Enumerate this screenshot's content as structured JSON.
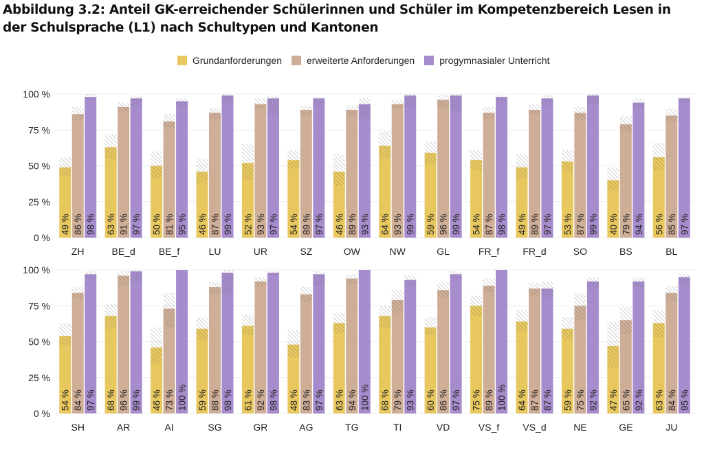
{
  "title": "Abbildung 3.2: Anteil GK-erreichender Schülerinnen und Schüler im Kompetenzbereich Lesen in der Schulsprache (L1) nach Schultypen und Kantonen",
  "chart_data": {
    "type": "bar",
    "title": "Abbildung 3.2: Anteil GK-erreichender Schülerinnen und Schüler im Kompetenzbereich Lesen in der Schulsprache (L1) nach Schultypen und Kantonen",
    "ylim": [
      0,
      100
    ],
    "yticks": [
      "0 %",
      "25 %",
      "50 %",
      "75 %",
      "100 %"
    ],
    "grid": true,
    "legend_placement": "top",
    "series": [
      {
        "name": "Grundanforderungen",
        "color": "#e8c85e"
      },
      {
        "name": "erweiterte Anforderungen",
        "color": "#cfae98"
      },
      {
        "name": "progymnasialer Unterricht",
        "color": "#a68ccc"
      }
    ],
    "panels": [
      {
        "categories": [
          "ZH",
          "BE_d",
          "BE_f",
          "LU",
          "UR",
          "SZ",
          "OW",
          "NW",
          "GL",
          "FR_f",
          "FR_d",
          "SO",
          "BS",
          "BL"
        ],
        "values": [
          [
            49,
            86,
            98
          ],
          [
            63,
            91,
            97
          ],
          [
            50,
            81,
            95
          ],
          [
            46,
            87,
            99
          ],
          [
            52,
            93,
            97
          ],
          [
            54,
            89,
            97
          ],
          [
            46,
            89,
            93
          ],
          [
            64,
            93,
            99
          ],
          [
            59,
            96,
            99
          ],
          [
            54,
            87,
            98
          ],
          [
            49,
            89,
            97
          ],
          [
            53,
            87,
            99
          ],
          [
            40,
            79,
            94
          ],
          [
            56,
            85,
            97
          ]
        ],
        "ci": [
          [
            [
              43,
              56
            ],
            [
              82,
              91
            ],
            [
              96,
              100
            ]
          ],
          [
            [
              55,
              72
            ],
            [
              88,
              94
            ],
            [
              92,
              99
            ]
          ],
          [
            [
              41,
              60
            ],
            [
              77,
              86
            ],
            [
              91,
              97
            ]
          ],
          [
            [
              38,
              55
            ],
            [
              83,
              90
            ],
            [
              94,
              100
            ]
          ],
          [
            [
              40,
              65
            ],
            [
              90,
              97
            ],
            [
              86,
              99
            ]
          ],
          [
            [
              48,
              61
            ],
            [
              85,
              92
            ],
            [
              92,
              98
            ]
          ],
          [
            [
              36,
              58
            ],
            [
              85,
              92
            ],
            [
              83,
              97
            ]
          ],
          [
            [
              55,
              74
            ],
            [
              90,
              96
            ],
            [
              91,
              100
            ]
          ],
          [
            [
              51,
              67
            ],
            [
              90,
              99
            ],
            [
              88,
              100
            ]
          ],
          [
            [
              47,
              61
            ],
            [
              83,
              91
            ],
            [
              95,
              99
            ]
          ],
          [
            [
              41,
              58
            ],
            [
              86,
              93
            ],
            [
              92,
              99
            ]
          ],
          [
            [
              46,
              61
            ],
            [
              82,
              91
            ],
            [
              93,
              100
            ]
          ],
          [
            [
              33,
              49
            ],
            [
              73,
              85
            ],
            [
              91,
              97
            ]
          ],
          [
            [
              47,
              66
            ],
            [
              81,
              90
            ],
            [
              94,
              98
            ]
          ]
        ]
      },
      {
        "categories": [
          "SH",
          "AR",
          "AI",
          "SG",
          "GR",
          "AG",
          "TG",
          "TI",
          "VD",
          "VS_f",
          "VS_d",
          "NE",
          "GE",
          "JU"
        ],
        "values": [
          [
            54,
            84,
            97
          ],
          [
            68,
            96,
            99
          ],
          [
            46,
            73,
            100
          ],
          [
            59,
            88,
            98
          ],
          [
            61,
            92,
            98
          ],
          [
            48,
            83,
            97
          ],
          [
            63,
            94,
            100
          ],
          [
            68,
            79,
            93
          ],
          [
            60,
            86,
            97
          ],
          [
            75,
            89,
            100
          ],
          [
            64,
            87,
            87
          ],
          [
            59,
            75,
            92
          ],
          [
            47,
            65,
            92
          ],
          [
            63,
            84,
            95
          ]
        ],
        "ci": [
          [
            [
              47,
              63
            ],
            [
              80,
              88
            ],
            [
              94,
              99
            ]
          ],
          [
            [
              59,
              76
            ],
            [
              89,
              99
            ],
            [
              92,
              100
            ]
          ],
          [
            [
              34,
              60
            ],
            [
              60,
              84
            ],
            [
              100,
              100
            ]
          ],
          [
            [
              51,
              67
            ],
            [
              83,
              92
            ],
            [
              83,
              100
            ]
          ],
          [
            [
              55,
              69
            ],
            [
              89,
              95
            ],
            [
              96,
              99
            ]
          ],
          [
            [
              39,
              58
            ],
            [
              78,
              88
            ],
            [
              89,
              99
            ]
          ],
          [
            [
              56,
              70
            ],
            [
              90,
              97
            ],
            [
              100,
              100
            ]
          ],
          [
            [
              60,
              75
            ],
            [
              70,
              86
            ],
            [
              89,
              96
            ]
          ],
          [
            [
              55,
              67
            ],
            [
              81,
              91
            ],
            [
              94,
              99
            ]
          ],
          [
            [
              68,
              82
            ],
            [
              84,
              94
            ],
            [
              100,
              100
            ]
          ],
          [
            [
              57,
              72
            ],
            [
              82,
              91
            ],
            [
              81,
              92
            ]
          ],
          [
            [
              51,
              67
            ],
            [
              65,
              84
            ],
            [
              88,
              95
            ]
          ],
          [
            [
              32,
              64
            ],
            [
              55,
              74
            ],
            [
              88,
              95
            ]
          ],
          [
            [
              53,
              72
            ],
            [
              78,
              89
            ],
            [
              90,
              97
            ]
          ]
        ]
      }
    ]
  }
}
